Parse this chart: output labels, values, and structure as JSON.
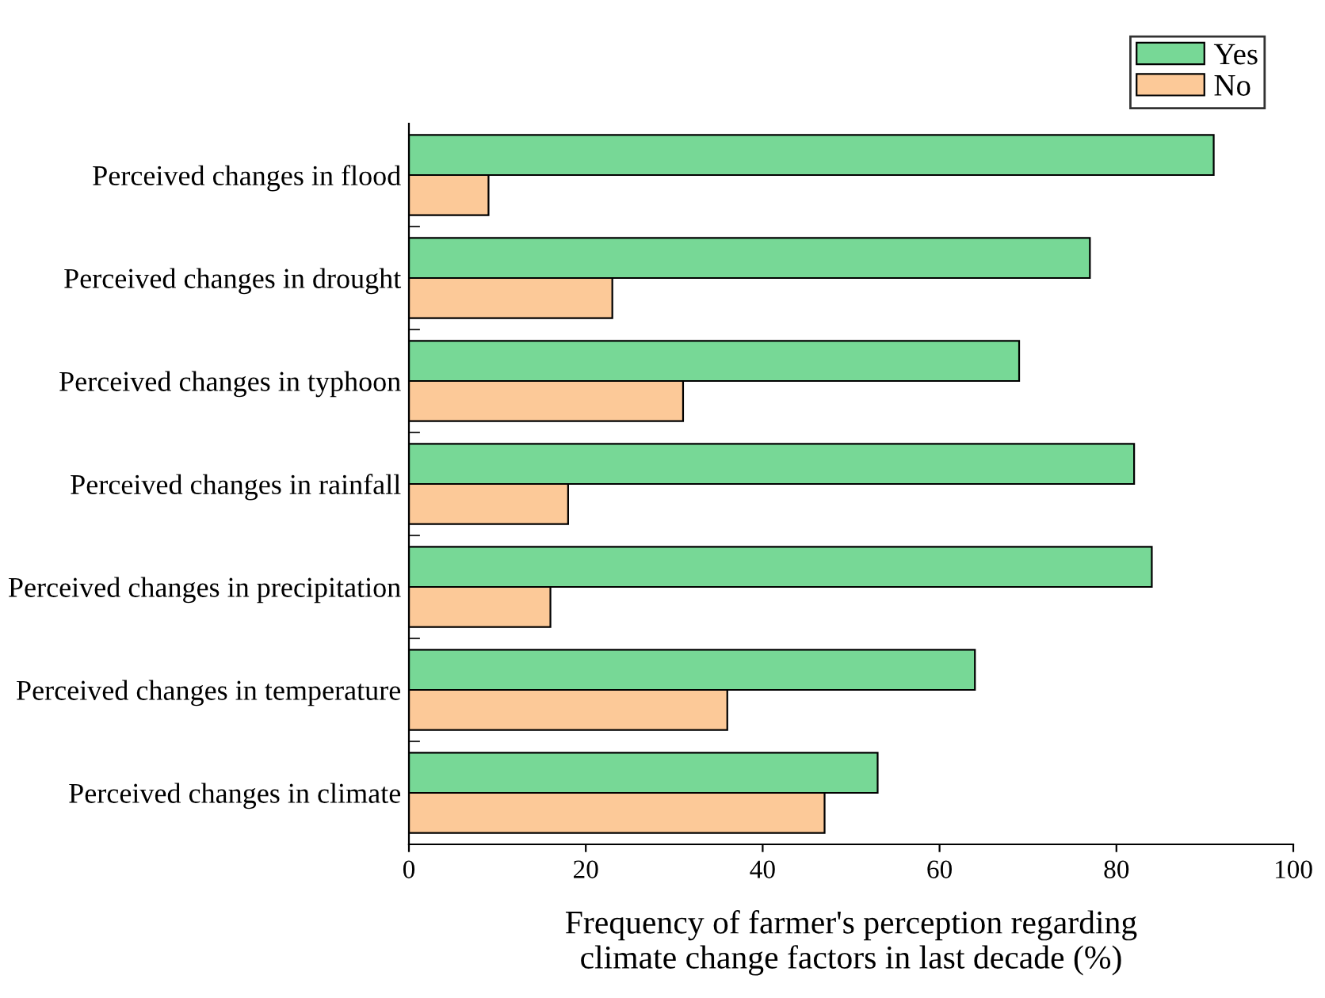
{
  "chart_data": {
    "type": "bar",
    "orientation": "horizontal",
    "xlabel": "Frequency of farmer's perception regarding\nclimate change factors in last decade (%)",
    "categories": [
      "Perceived changes in flood",
      "Perceived changes in drought",
      "Perceived changes in typhoon",
      "Perceived changes in rainfall",
      "Perceived changes in precipitation",
      "Perceived changes in temperature",
      "Perceived changes in climate"
    ],
    "series": [
      {
        "name": "Yes",
        "color": "#77d896",
        "values": [
          91,
          77,
          69,
          82,
          84,
          64,
          53
        ]
      },
      {
        "name": "No",
        "color": "#fcc998",
        "values": [
          9,
          23,
          31,
          18,
          16,
          36,
          47
        ]
      }
    ],
    "xlim": [
      0,
      100
    ],
    "xticks": [
      0,
      20,
      40,
      60,
      80,
      100
    ],
    "legend": "top right",
    "grid": false
  }
}
